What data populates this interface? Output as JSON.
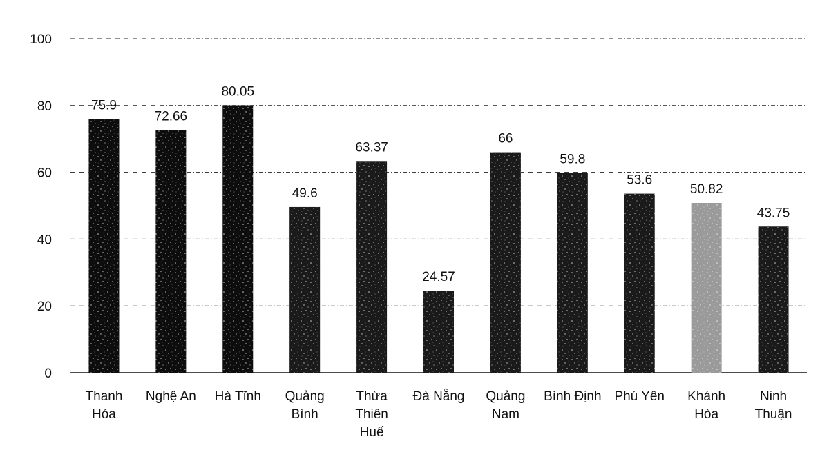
{
  "chart_data": {
    "type": "bar",
    "categories": [
      [
        "Thanh",
        "Hóa"
      ],
      [
        "Nghệ An"
      ],
      [
        "Hà Tĩnh"
      ],
      [
        "Quảng",
        "Bình"
      ],
      [
        "Thừa",
        "Thiên",
        "Huế"
      ],
      [
        "Đà Nẵng"
      ],
      [
        "Quảng",
        "Nam"
      ],
      [
        "Bình Định"
      ],
      [
        "Phú Yên"
      ],
      [
        "Khánh",
        "Hòa"
      ],
      [
        "Ninh",
        "Thuận"
      ]
    ],
    "values": [
      75.9,
      72.66,
      80.05,
      49.6,
      63.37,
      24.57,
      66,
      59.8,
      53.6,
      50.82,
      43.75
    ],
    "value_labels": [
      "75.9",
      "72.66",
      "80.05",
      "49.6",
      "63.37",
      "24.57",
      "66",
      "59.8",
      "53.6",
      "50.82",
      "43.75"
    ],
    "bar_colors": [
      "#0d0d0d",
      "#0d0d0d",
      "#0d0d0d",
      "#1a1a1a",
      "#1a1a1a",
      "#1a1a1a",
      "#1a1a1a",
      "#1a1a1a",
      "#1a1a1a",
      "#9a9a9a",
      "#1a1a1a"
    ],
    "yticks": [
      "0",
      "20",
      "40",
      "60",
      "80",
      "100"
    ],
    "ylim": [
      0,
      100
    ],
    "grid": true,
    "legend": "none"
  }
}
